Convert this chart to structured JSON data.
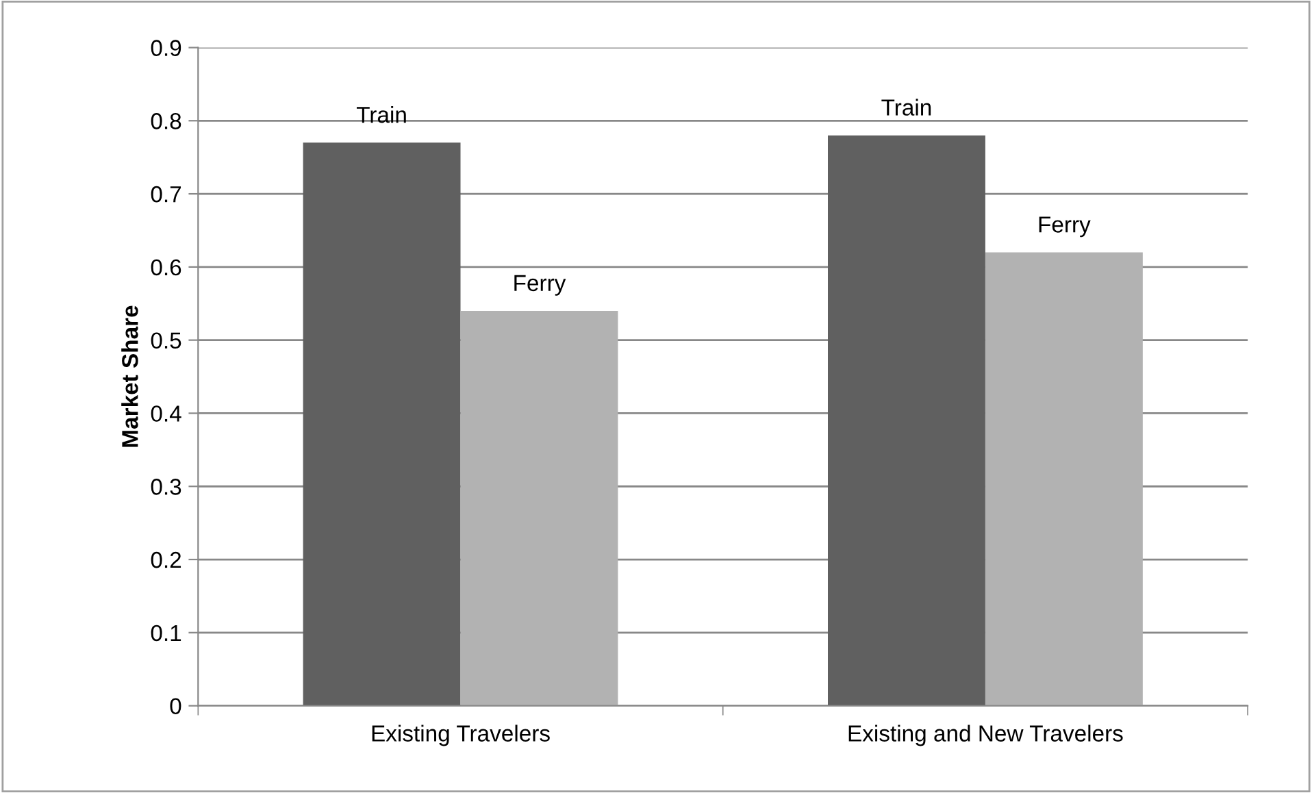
{
  "chart_data": {
    "type": "bar",
    "ylabel": "Market Share",
    "categories": [
      "Existing Travelers",
      "Existing and New Travelers"
    ],
    "series": [
      {
        "name": "Train",
        "color": "#606060",
        "values": [
          0.77,
          0.78
        ]
      },
      {
        "name": "Ferry",
        "color": "#b2b2b2",
        "values": [
          0.54,
          0.62
        ]
      }
    ],
    "ylim": [
      0,
      0.9
    ],
    "yticks": [
      0,
      0.1,
      0.2,
      0.3,
      0.4,
      0.5,
      0.6,
      0.7,
      0.8,
      0.9
    ],
    "grid": "y",
    "legend": false
  }
}
